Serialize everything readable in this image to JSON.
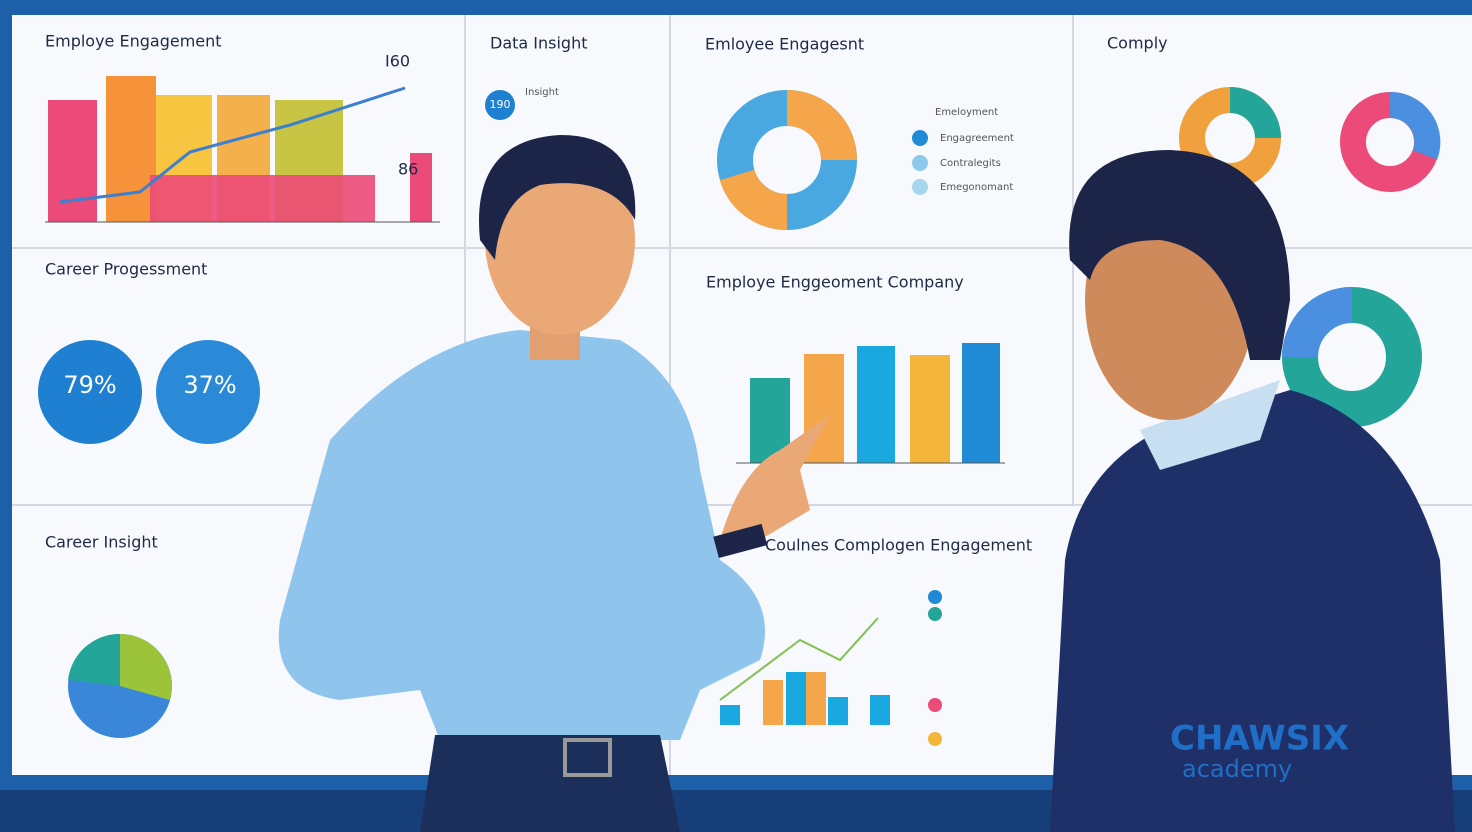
{
  "panels": [
    {
      "title": "Employe Engagement",
      "labels": [
        "I60",
        "86"
      ]
    },
    {
      "title": "Data Insight",
      "labels": [
        "190",
        "Insight"
      ]
    },
    {
      "title": "Emloyee Engagesnt",
      "legend": [
        "Emeloyment",
        "Engagreement",
        "Contralegits",
        "Emegonomant"
      ]
    },
    {
      "title": "Comply"
    },
    {
      "title": "Career Progessment",
      "labels": [
        "79%",
        "37%"
      ]
    },
    {
      "title": "Employe Enggeoment Company"
    },
    {
      "title": "Career Insight"
    },
    {
      "title": "Coulnes Complogen Engagement"
    }
  ],
  "logo": {
    "name": "CHAWSIX",
    "tagline": "academy"
  }
}
